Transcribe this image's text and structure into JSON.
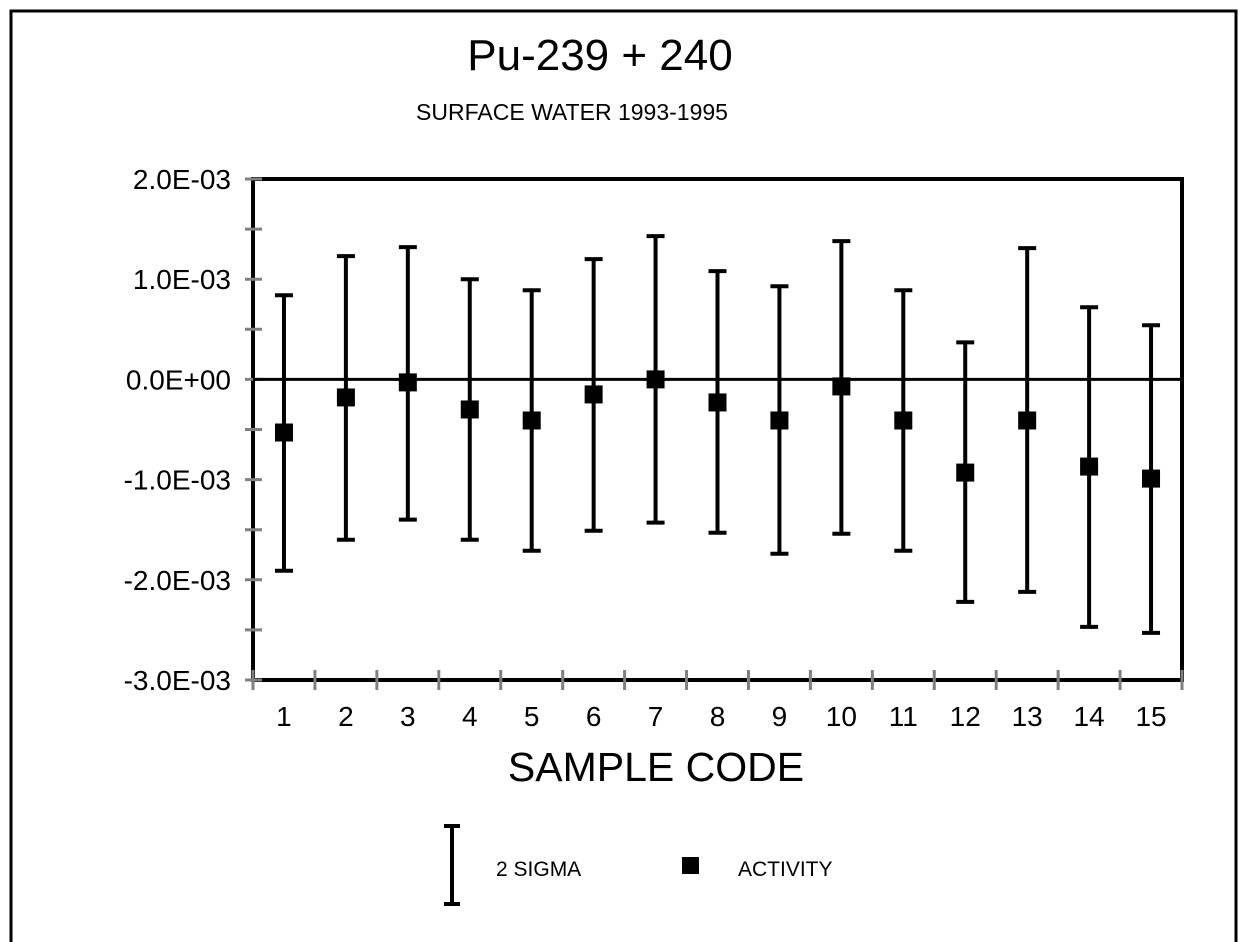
{
  "chart_data": {
    "type": "scatter",
    "title": "Pu-239 + 240",
    "subtitle": "SURFACE WATER 1993-1995",
    "xlabel": "SAMPLE CODE",
    "ylabel": "",
    "ylim": [
      -0.003,
      0.002
    ],
    "y_ticks": [
      0.002,
      0.001,
      0.0,
      -0.001,
      -0.002,
      -0.003
    ],
    "y_tick_labels": [
      "2.0E-03",
      "1.0E-03",
      "0.0E+00",
      "-1.0E-03",
      "-2.0E-03",
      "-3.0E-03"
    ],
    "categories": [
      "1",
      "2",
      "3",
      "4",
      "5",
      "6",
      "7",
      "8",
      "9",
      "10",
      "11",
      "12",
      "13",
      "14",
      "15"
    ],
    "series": [
      {
        "name": "ACTIVITY",
        "values": [
          -0.00053,
          -0.00018,
          -3e-05,
          -0.0003,
          -0.00041,
          -0.00015,
          0.0,
          -0.00023,
          -0.00041,
          -7e-05,
          -0.00041,
          -0.00093,
          -0.00041,
          -0.00087,
          -0.00099
        ]
      },
      {
        "name": "2 SIGMA",
        "upper": [
          0.00084,
          0.00123,
          0.00132,
          0.001,
          0.00089,
          0.0012,
          0.00143,
          0.00108,
          0.00093,
          0.00138,
          0.00089,
          0.00037,
          0.00131,
          0.00072,
          0.00054
        ],
        "lower": [
          -0.00191,
          -0.0016,
          -0.0014,
          -0.0016,
          -0.00171,
          -0.00151,
          -0.00143,
          -0.00153,
          -0.00174,
          -0.00154,
          -0.00171,
          -0.00222,
          -0.00212,
          -0.00247,
          -0.00253
        ]
      }
    ],
    "grid": false,
    "legend_position": "bottom-center",
    "legend": [
      {
        "symbol": "errorbar",
        "label": "2 SIGMA"
      },
      {
        "symbol": "square",
        "label": "ACTIVITY"
      }
    ],
    "colors": {
      "marks": "#000000",
      "minor_ticks": "#808080",
      "background": "#ffffff"
    }
  }
}
